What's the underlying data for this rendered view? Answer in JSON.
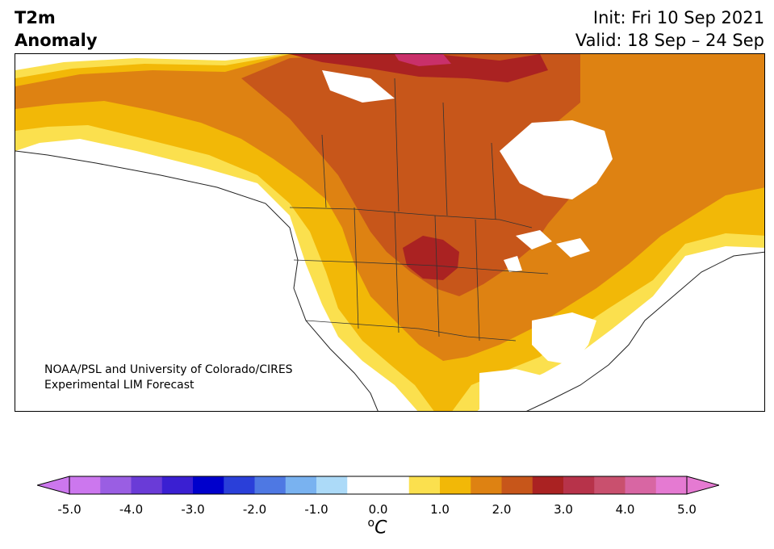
{
  "header": {
    "title_line1": "T2m",
    "title_line2": "Anomaly",
    "init": "Init: Fri 10 Sep 2021",
    "valid": "Valid: 18 Sep – 24 Sep"
  },
  "credit": {
    "line1": "NOAA/PSL and University of Colorado/CIRES",
    "line2": "Experimental LIM Forecast"
  },
  "colorbar": {
    "unit_letter": "C",
    "unit_sup": "o",
    "tick_labels": [
      "-5.0",
      "-4.0",
      "-3.0",
      "-2.0",
      "-1.0",
      "0.0",
      "1.0",
      "2.0",
      "3.0",
      "4.0",
      "5.0"
    ],
    "range": [
      -5.0,
      5.0
    ],
    "colors": [
      "#cc77ee",
      "#9a5ee3",
      "#6a3bd7",
      "#3a1fd2",
      "#0000cc",
      "#2a3fd9",
      "#4e78e3",
      "#79b2f0",
      "#acdaf8",
      "#ffffff",
      "#ffffff",
      "#fbe04e",
      "#f2b807",
      "#de8212",
      "#c7561a",
      "#aa2222",
      "#b7334a",
      "#c9506e",
      "#d866a3",
      "#e57ad2"
    ]
  },
  "map_colors": {
    "c1": "#fbe04e",
    "c2": "#f2b807",
    "c3": "#de8212",
    "c4": "#c7561a",
    "c5": "#aa2222",
    "c6": "#c9306a",
    "land_neutral": "#ffffff",
    "boundary": "#333333"
  }
}
